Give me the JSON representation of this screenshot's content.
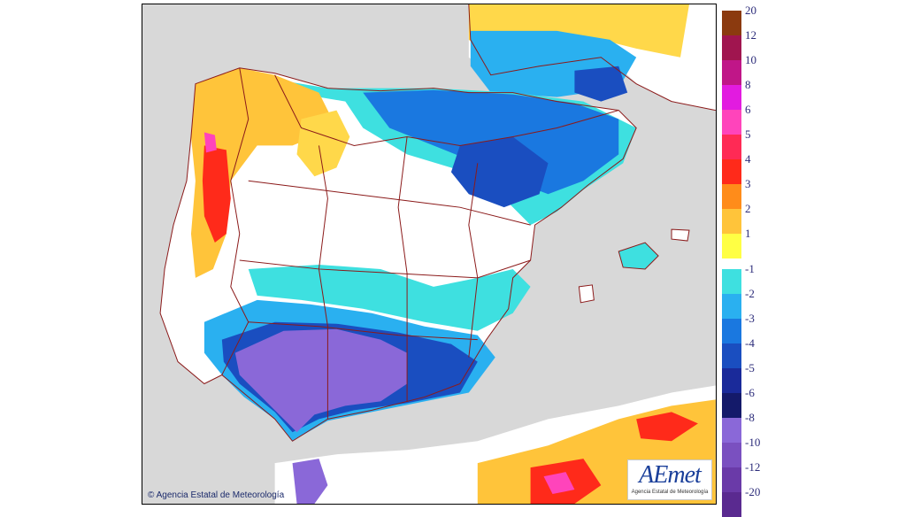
{
  "map": {
    "copyright": "Agencia Estatal de Meteorología",
    "logo_text": "AEmet",
    "logo_subtext": "Agencia Estatal de Meteorología",
    "land_color": "#ffffff",
    "sea_color": "#d8d8d8",
    "border_color": "#8b1a1a"
  },
  "legend": {
    "positive": [
      {
        "label": "20",
        "color": "#8b3a0f"
      },
      {
        "label": "12",
        "color": "#a0154f"
      },
      {
        "label": "10",
        "color": "#c01688"
      },
      {
        "label": "8",
        "color": "#e21be0"
      },
      {
        "label": "6",
        "color": "#ff44bb"
      },
      {
        "label": "5",
        "color": "#ff2a55"
      },
      {
        "label": "4",
        "color": "#ff2a1a"
      },
      {
        "label": "3",
        "color": "#ff8c1a"
      },
      {
        "label": "2",
        "color": "#ffc43a"
      },
      {
        "label": "1",
        "color": "#ffff44"
      }
    ],
    "negative": [
      {
        "label": "-1",
        "color": "#3ee0e0"
      },
      {
        "label": "-2",
        "color": "#2ab0f0"
      },
      {
        "label": "-3",
        "color": "#1a78e0"
      },
      {
        "label": "-4",
        "color": "#1a4ec0"
      },
      {
        "label": "-5",
        "color": "#1a2a9a"
      },
      {
        "label": "-6",
        "color": "#141a6a"
      },
      {
        "label": "-8",
        "color": "#8a68d8"
      },
      {
        "label": "-10",
        "color": "#7a50c0"
      },
      {
        "label": "-12",
        "color": "#6a3aa8"
      },
      {
        "label": "-20",
        "color": "#5a2a90"
      }
    ]
  }
}
